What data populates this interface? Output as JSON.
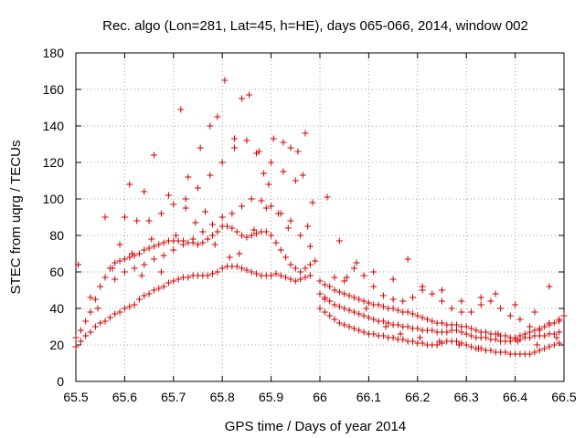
{
  "chart_data": {
    "type": "scatter",
    "title": "Rec. algo (Lon=281, Lat=45, h=HE), days 065-066, 2014, window 002",
    "xlabel": "GPS time / Days of year 2014",
    "ylabel": "STEC from uqrg / TECUs",
    "xlim": [
      65.5,
      66.5
    ],
    "ylim": [
      0,
      180
    ],
    "xticks": [
      65.5,
      65.6,
      65.7,
      65.8,
      65.9,
      66.0,
      66.1,
      66.2,
      66.3,
      66.4,
      66.5
    ],
    "xtick_labels": [
      "65.5",
      "65.6",
      "65.7",
      "65.8",
      "65.9",
      "66",
      "66.1",
      "66.2",
      "66.3",
      "66.4",
      "66.5"
    ],
    "yticks": [
      0,
      20,
      40,
      60,
      80,
      100,
      120,
      140,
      160,
      180
    ],
    "ytick_labels": [
      "0",
      "20",
      "40",
      "60",
      "80",
      "100",
      "120",
      "140",
      "160",
      "180"
    ],
    "grid": true,
    "marker": "+",
    "color": "#cc0000",
    "series": [
      {
        "name": "STEC",
        "x": [
          65.5,
          65.51,
          65.52,
          65.53,
          65.54,
          65.55,
          65.56,
          65.57,
          65.58,
          65.59,
          65.6,
          65.61,
          65.62,
          65.63,
          65.64,
          65.65,
          65.66,
          65.67,
          65.68,
          65.69,
          65.7,
          65.71,
          65.72,
          65.73,
          65.74,
          65.75,
          65.76,
          65.77,
          65.78,
          65.79,
          65.8,
          65.81,
          65.82,
          65.83,
          65.84,
          65.85,
          65.86,
          65.87,
          65.88,
          65.89,
          65.9,
          65.91,
          65.92,
          65.93,
          65.94,
          65.95,
          65.96,
          65.97,
          65.98,
          65.5,
          65.51,
          65.52,
          65.53,
          65.54,
          65.55,
          65.56,
          65.57,
          65.58,
          65.59,
          65.6,
          65.61,
          65.62,
          65.63,
          65.64,
          65.65,
          65.66,
          65.67,
          65.68,
          65.69,
          65.7,
          65.71,
          65.72,
          65.73,
          65.74,
          65.75,
          65.76,
          65.77,
          65.78,
          65.79,
          65.8,
          65.81,
          65.82,
          65.83,
          65.84,
          65.85,
          65.86,
          65.87,
          65.88,
          65.89,
          65.9,
          65.91,
          65.92,
          65.93,
          65.94,
          65.95,
          65.96,
          65.97,
          65.98,
          65.58,
          65.6,
          65.62,
          65.64,
          65.66,
          65.68,
          65.7,
          65.72,
          65.74,
          65.76,
          65.78,
          65.8,
          65.82,
          65.84,
          65.86,
          65.88,
          65.9,
          65.92,
          65.94,
          65.96,
          65.98,
          65.6,
          65.625,
          65.65,
          65.675,
          65.7,
          65.725,
          65.75,
          65.775,
          65.8,
          65.825,
          65.85,
          65.875,
          65.9,
          65.925,
          65.95,
          65.56,
          65.61,
          65.64,
          65.66,
          65.69,
          65.715,
          65.73,
          65.755,
          65.775,
          65.79,
          65.805,
          65.825,
          65.84,
          65.855,
          65.87,
          65.89,
          65.905,
          65.925,
          65.94,
          65.955,
          65.97,
          65.985,
          65.505,
          65.53,
          65.545,
          65.575,
          65.59,
          65.615,
          65.635,
          65.655,
          65.675,
          65.705,
          65.725,
          65.745,
          65.765,
          65.785,
          65.815,
          65.835,
          65.865,
          65.885,
          65.895,
          65.915,
          65.935,
          65.965,
          65.975,
          65.99,
          66.0,
          66.01,
          66.02,
          66.03,
          66.04,
          66.05,
          66.06,
          66.07,
          66.08,
          66.09,
          66.1,
          66.11,
          66.12,
          66.13,
          66.14,
          66.15,
          66.16,
          66.17,
          66.18,
          66.19,
          66.2,
          66.21,
          66.22,
          66.23,
          66.24,
          66.25,
          66.26,
          66.27,
          66.28,
          66.29,
          66.3,
          66.31,
          66.32,
          66.33,
          66.34,
          66.35,
          66.36,
          66.37,
          66.38,
          66.39,
          66.4,
          66.41,
          66.42,
          66.43,
          66.44,
          66.45,
          66.46,
          66.47,
          66.48,
          66.49,
          66.0,
          66.01,
          66.02,
          66.03,
          66.04,
          66.05,
          66.06,
          66.07,
          66.08,
          66.09,
          66.1,
          66.11,
          66.12,
          66.13,
          66.14,
          66.15,
          66.16,
          66.17,
          66.18,
          66.19,
          66.2,
          66.21,
          66.22,
          66.23,
          66.24,
          66.25,
          66.26,
          66.27,
          66.28,
          66.29,
          66.3,
          66.31,
          66.32,
          66.33,
          66.34,
          66.35,
          66.36,
          66.37,
          66.38,
          66.39,
          66.4,
          66.41,
          66.42,
          66.43,
          66.44,
          66.45,
          66.46,
          66.47,
          66.48,
          66.49,
          66.0,
          66.01,
          66.02,
          66.03,
          66.04,
          66.05,
          66.06,
          66.07,
          66.08,
          66.09,
          66.1,
          66.11,
          66.12,
          66.13,
          66.14,
          66.15,
          66.16,
          66.17,
          66.18,
          66.19,
          66.2,
          66.21,
          66.22,
          66.23,
          66.24,
          66.25,
          66.26,
          66.27,
          66.28,
          66.29,
          66.3,
          66.31,
          66.32,
          66.33,
          66.34,
          66.35,
          66.36,
          66.37,
          66.38,
          66.39,
          66.4,
          66.41,
          66.42,
          66.43,
          66.44,
          66.45,
          66.46,
          66.47,
          66.48,
          66.49,
          66.01,
          66.03,
          66.05,
          66.07,
          66.09,
          66.11,
          66.13,
          66.15,
          66.17,
          66.19,
          66.21,
          66.23,
          66.25,
          66.27,
          66.29,
          66.31,
          66.33,
          66.35,
          66.37,
          66.39,
          66.41,
          66.43,
          66.45,
          66.47,
          66.49,
          66.04,
          66.075,
          66.11,
          66.15,
          66.18,
          66.21,
          66.25,
          66.29,
          66.33,
          66.36,
          66.4,
          66.44,
          66.47,
          66.5,
          66.015,
          66.055,
          66.095,
          66.135,
          66.165,
          66.205,
          66.245,
          66.285,
          66.325,
          66.365,
          66.405,
          66.445,
          66.485
        ],
        "y": [
          19,
          22,
          25,
          27,
          30,
          32,
          33,
          35,
          37,
          38,
          40,
          41,
          42,
          45,
          47,
          48,
          50,
          51,
          52,
          54,
          55,
          56,
          57,
          57,
          58,
          58,
          58,
          58,
          59,
          60,
          62,
          63,
          63,
          63,
          62,
          61,
          60,
          59,
          58,
          58,
          58,
          59,
          58,
          57,
          56,
          55,
          56,
          57,
          58,
          24,
          28,
          33,
          38,
          45,
          52,
          57,
          62,
          65,
          66,
          67,
          68,
          69,
          70,
          72,
          73,
          74,
          75,
          76,
          77,
          77,
          77,
          77,
          76,
          76,
          75,
          76,
          78,
          80,
          82,
          85,
          85,
          84,
          82,
          80,
          79,
          80,
          81,
          82,
          82,
          80,
          76,
          72,
          68,
          64,
          62,
          60,
          62,
          64,
          56,
          60,
          62,
          64,
          67,
          69,
          72,
          75,
          78,
          82,
          86,
          90,
          92,
          96,
          100,
          99,
          96,
          92,
          88,
          80,
          74,
          90,
          88,
          88,
          92,
          97,
          100,
          106,
          113,
          120,
          128,
          132,
          126,
          120,
          115,
          110,
          90,
          108,
          104,
          124,
          102,
          149,
          112,
          128,
          140,
          145,
          165,
          133,
          155,
          157,
          125,
          95,
          133,
          131,
          128,
          126,
          136,
          98,
          64,
          46,
          40,
          62,
          75,
          70,
          58,
          78,
          60,
          80,
          95,
          87,
          93,
          75,
          68,
          70,
          83,
          114,
          108,
          92,
          84,
          113,
          85,
          66,
          40,
          38,
          36,
          34,
          32,
          31,
          30,
          29,
          28,
          27,
          26,
          26,
          25,
          25,
          24,
          24,
          23,
          23,
          22,
          22,
          21,
          21,
          20,
          20,
          20,
          21,
          22,
          22,
          22,
          21,
          20,
          19,
          18,
          18,
          17,
          17,
          16,
          16,
          16,
          15,
          15,
          15,
          15,
          15,
          16,
          17,
          18,
          19,
          20,
          21,
          48,
          46,
          44,
          42,
          41,
          40,
          39,
          38,
          37,
          36,
          35,
          34,
          33,
          33,
          32,
          31,
          31,
          30,
          30,
          29,
          29,
          28,
          28,
          28,
          27,
          27,
          27,
          28,
          28,
          27,
          26,
          25,
          24,
          24,
          24,
          23,
          23,
          22,
          22,
          22,
          23,
          23,
          24,
          24,
          25,
          25,
          25,
          26,
          26,
          27,
          55,
          53,
          52,
          50,
          49,
          48,
          47,
          46,
          45,
          44,
          43,
          42,
          42,
          41,
          40,
          40,
          39,
          38,
          38,
          37,
          36,
          35,
          34,
          33,
          32,
          32,
          31,
          31,
          31,
          30,
          30,
          29,
          28,
          27,
          27,
          26,
          26,
          25,
          25,
          24,
          24,
          25,
          26,
          27,
          28,
          29,
          30,
          31,
          32,
          33,
          45,
          57,
          55,
          62,
          58,
          52,
          47,
          45,
          44,
          46,
          50,
          48,
          44,
          40,
          38,
          38,
          42,
          44,
          40,
          36,
          34,
          30,
          28,
          32,
          34,
          77,
          65,
          60,
          56,
          67,
          52,
          50,
          44,
          46,
          48,
          42,
          38,
          52,
          36,
          101,
          57,
          40,
          30,
          26,
          24,
          22,
          20,
          18,
          26,
          22,
          20,
          24
        ]
      }
    ]
  }
}
